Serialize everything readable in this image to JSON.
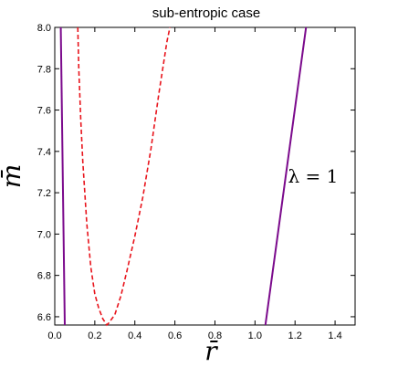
{
  "chart_data": {
    "type": "line",
    "title": "sub-entropic case",
    "xlabel": "r̄",
    "ylabel": "m̄",
    "xlim": [
      0,
      1.5
    ],
    "ylim": [
      6.56,
      8.0
    ],
    "xticks": [
      0.0,
      0.2,
      0.4,
      0.6,
      0.8,
      1.0,
      1.2,
      1.4
    ],
    "xtick_labels": [
      "0.0",
      "0.2",
      "0.4",
      "0.6",
      "0.8",
      "1.0",
      "1.2",
      "1.4"
    ],
    "yticks": [
      6.6,
      6.8,
      7.0,
      7.2,
      7.4,
      7.6,
      7.8,
      8.0
    ],
    "ytick_labels": [
      "6.6",
      "6.8",
      "7.0",
      "7.2",
      "7.4",
      "7.6",
      "7.8",
      "8.0"
    ],
    "grid": false,
    "annotations": [
      {
        "text": "λ = 1",
        "x": 1.29,
        "y": 7.25
      }
    ],
    "series": [
      {
        "style": "solid",
        "color": "#7b0a8c",
        "points": [
          [
            0.03,
            8.0
          ],
          [
            0.05,
            6.56
          ]
        ]
      },
      {
        "style": "solid",
        "color": "#7b0a8c",
        "points": [
          [
            1.052,
            6.56
          ],
          [
            1.255,
            8.0
          ]
        ]
      },
      {
        "style": "dashed",
        "color": "#e8141c",
        "points": [
          [
            0.115,
            8.0
          ],
          [
            0.12,
            7.8
          ],
          [
            0.13,
            7.55
          ],
          [
            0.14,
            7.35
          ],
          [
            0.16,
            7.05
          ],
          [
            0.18,
            6.84
          ],
          [
            0.2,
            6.71
          ],
          [
            0.22,
            6.64
          ],
          [
            0.24,
            6.59
          ],
          [
            0.26,
            6.56
          ],
          [
            0.27,
            6.57
          ],
          [
            0.3,
            6.61
          ],
          [
            0.33,
            6.7
          ],
          [
            0.36,
            6.82
          ],
          [
            0.4,
            6.99
          ],
          [
            0.44,
            7.18
          ],
          [
            0.48,
            7.41
          ],
          [
            0.52,
            7.68
          ],
          [
            0.56,
            7.93
          ],
          [
            0.575,
            8.0
          ]
        ]
      }
    ]
  }
}
